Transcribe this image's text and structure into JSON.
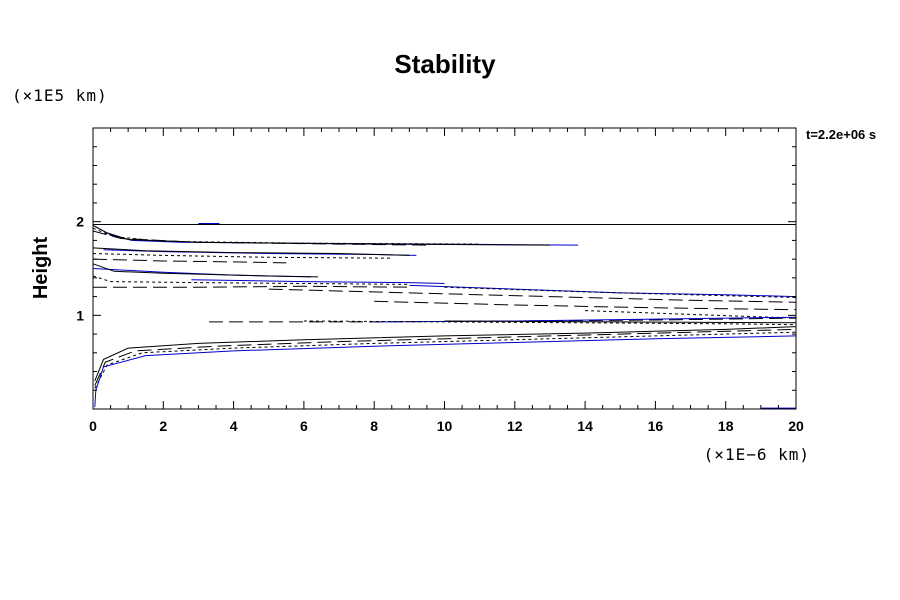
{
  "chart_data": {
    "type": "line",
    "title": "Stability",
    "ylabel": "Height",
    "xlabel": "",
    "x_unit": "(×1E−6 km)",
    "y_unit": "(×1E5 km)",
    "annotation": "t=2.2e+06 s",
    "xlim": [
      0,
      20
    ],
    "ylim": [
      0,
      3
    ],
    "x_ticks": [
      0,
      2,
      4,
      6,
      8,
      10,
      12,
      14,
      16,
      18,
      20
    ],
    "y_ticks": [
      1,
      2
    ],
    "grid": false,
    "colors": {
      "blue": "#0000cc",
      "black": "#000000"
    },
    "series": [
      {
        "style": "solid",
        "color": "#000000",
        "points": [
          [
            0,
            1.97
          ],
          [
            20,
            1.97
          ]
        ]
      },
      {
        "style": "solid",
        "color": "#0000cc",
        "points": [
          [
            3,
            1.98
          ],
          [
            3.6,
            1.98
          ]
        ]
      },
      {
        "style": "solid",
        "color": "#0000cc",
        "points": [
          [
            0.05,
            1.95
          ],
          [
            0.5,
            1.86
          ],
          [
            1.1,
            1.8
          ],
          [
            2.5,
            1.78
          ],
          [
            6,
            1.77
          ],
          [
            10,
            1.76
          ],
          [
            13.8,
            1.75
          ]
        ]
      },
      {
        "style": "solid",
        "color": "#000000",
        "points": [
          [
            0,
            1.96
          ],
          [
            0.4,
            1.88
          ],
          [
            1,
            1.81
          ],
          [
            3,
            1.78
          ],
          [
            8,
            1.76
          ],
          [
            13,
            1.75
          ]
        ]
      },
      {
        "style": "short-dash",
        "color": "#000000",
        "points": [
          [
            0,
            1.93
          ],
          [
            0.6,
            1.84
          ],
          [
            2,
            1.79
          ],
          [
            6,
            1.77
          ],
          [
            11,
            1.76
          ]
        ]
      },
      {
        "style": "long-dash",
        "color": "#000000",
        "points": [
          [
            0,
            1.9
          ],
          [
            0.8,
            1.82
          ],
          [
            3,
            1.78
          ],
          [
            7,
            1.76
          ],
          [
            9.5,
            1.75
          ]
        ]
      },
      {
        "style": "solid",
        "color": "#0000cc",
        "points": [
          [
            0.3,
            1.7
          ],
          [
            2,
            1.68
          ],
          [
            5,
            1.66
          ],
          [
            8,
            1.65
          ],
          [
            9.2,
            1.64
          ]
        ]
      },
      {
        "style": "solid",
        "color": "#000000",
        "points": [
          [
            0,
            1.72
          ],
          [
            1.5,
            1.69
          ],
          [
            4,
            1.67
          ],
          [
            7,
            1.66
          ],
          [
            9,
            1.64
          ]
        ]
      },
      {
        "style": "short-dash",
        "color": "#000000",
        "points": [
          [
            0,
            1.66
          ],
          [
            2,
            1.64
          ],
          [
            5,
            1.62
          ],
          [
            8.5,
            1.61
          ]
        ]
      },
      {
        "style": "long-dash",
        "color": "#000000",
        "points": [
          [
            0,
            1.6
          ],
          [
            2,
            1.58
          ],
          [
            4,
            1.57
          ],
          [
            5.5,
            1.56
          ]
        ]
      },
      {
        "style": "solid",
        "color": "#0000cc",
        "points": [
          [
            0,
            1.5
          ],
          [
            2,
            1.46
          ],
          [
            4,
            1.43
          ],
          [
            6.2,
            1.41
          ]
        ]
      },
      {
        "style": "solid",
        "color": "#000000",
        "points": [
          [
            0,
            1.55
          ],
          [
            0.6,
            1.47
          ],
          [
            2,
            1.45
          ],
          [
            5,
            1.42
          ],
          [
            6.4,
            1.41
          ]
        ]
      },
      {
        "style": "short-dash",
        "color": "#000000",
        "points": [
          [
            0,
            1.42
          ],
          [
            0.5,
            1.36
          ],
          [
            3,
            1.35
          ],
          [
            6,
            1.34
          ],
          [
            9,
            1.33
          ]
        ]
      },
      {
        "style": "solid",
        "color": "#0000cc",
        "points": [
          [
            2.8,
            1.38
          ],
          [
            6,
            1.36
          ],
          [
            9,
            1.35
          ],
          [
            10,
            1.34
          ]
        ]
      },
      {
        "style": "long-dash",
        "color": "#000000",
        "points": [
          [
            0,
            1.3
          ],
          [
            3,
            1.3
          ],
          [
            6,
            1.31
          ],
          [
            9,
            1.3
          ]
        ]
      },
      {
        "style": "solid",
        "color": "#0000cc",
        "points": [
          [
            9,
            1.32
          ],
          [
            12,
            1.28
          ],
          [
            15,
            1.24
          ],
          [
            18,
            1.22
          ],
          [
            20,
            1.2
          ]
        ]
      },
      {
        "style": "short-dash",
        "color": "#000000",
        "points": [
          [
            10,
            1.3
          ],
          [
            14,
            1.25
          ],
          [
            18,
            1.21
          ],
          [
            20,
            1.19
          ]
        ]
      },
      {
        "style": "long-dash",
        "color": "#000000",
        "points": [
          [
            5,
            1.28
          ],
          [
            9,
            1.24
          ],
          [
            13,
            1.2
          ],
          [
            17,
            1.16
          ],
          [
            20,
            1.14
          ]
        ]
      },
      {
        "style": "long-dash",
        "color": "#000000",
        "points": [
          [
            8,
            1.15
          ],
          [
            12,
            1.11
          ],
          [
            16,
            1.08
          ],
          [
            20,
            1.06
          ]
        ]
      },
      {
        "style": "short-dash",
        "color": "#000000",
        "points": [
          [
            14,
            1.05
          ],
          [
            17,
            1.01
          ],
          [
            20,
            0.97
          ]
        ]
      },
      {
        "style": "long-dash",
        "color": "#000000",
        "points": [
          [
            3.3,
            0.93
          ],
          [
            8,
            0.93
          ],
          [
            12,
            0.94
          ],
          [
            16,
            0.95
          ],
          [
            20,
            0.97
          ]
        ]
      },
      {
        "style": "solid",
        "color": "#0000cc",
        "points": [
          [
            8,
            0.93
          ],
          [
            12,
            0.94
          ],
          [
            16,
            0.96
          ],
          [
            20,
            0.98
          ]
        ]
      },
      {
        "style": "short-dash",
        "color": "#000000",
        "points": [
          [
            6,
            0.94
          ],
          [
            10,
            0.93
          ],
          [
            14,
            0.92
          ],
          [
            18,
            0.91
          ],
          [
            20,
            0.9
          ]
        ]
      },
      {
        "style": "solid",
        "color": "#000000",
        "points": [
          [
            10,
            0.94
          ],
          [
            15,
            0.93
          ],
          [
            20,
            0.92
          ]
        ]
      },
      {
        "style": "solid",
        "color": "#000000",
        "points": [
          [
            0.05,
            0.3
          ],
          [
            0.3,
            0.53
          ],
          [
            1,
            0.65
          ],
          [
            3,
            0.7
          ],
          [
            6,
            0.74
          ],
          [
            10,
            0.78
          ],
          [
            14,
            0.81
          ],
          [
            18,
            0.85
          ],
          [
            20,
            0.88
          ]
        ]
      },
      {
        "style": "long-dash",
        "color": "#000000",
        "points": [
          [
            0.05,
            0.25
          ],
          [
            0.35,
            0.5
          ],
          [
            1.2,
            0.62
          ],
          [
            3.5,
            0.67
          ],
          [
            7,
            0.72
          ],
          [
            11,
            0.76
          ],
          [
            15,
            0.8
          ],
          [
            20,
            0.85
          ]
        ]
      },
      {
        "style": "short-dash",
        "color": "#000000",
        "points": [
          [
            0.05,
            0.22
          ],
          [
            0.4,
            0.47
          ],
          [
            1.4,
            0.6
          ],
          [
            4,
            0.65
          ],
          [
            8,
            0.7
          ],
          [
            12,
            0.74
          ],
          [
            16,
            0.78
          ],
          [
            20,
            0.82
          ]
        ]
      },
      {
        "style": "solid",
        "color": "#0000cc",
        "points": [
          [
            0.05,
            0.02
          ],
          [
            0.08,
            0.2
          ],
          [
            0.3,
            0.45
          ],
          [
            1.5,
            0.57
          ],
          [
            4,
            0.62
          ],
          [
            8,
            0.67
          ],
          [
            12,
            0.71
          ],
          [
            16,
            0.75
          ],
          [
            20,
            0.78
          ]
        ]
      },
      {
        "style": "solid",
        "color": "#0000cc",
        "points": [
          [
            19,
            0.01
          ],
          [
            20,
            0.01
          ]
        ]
      }
    ]
  }
}
